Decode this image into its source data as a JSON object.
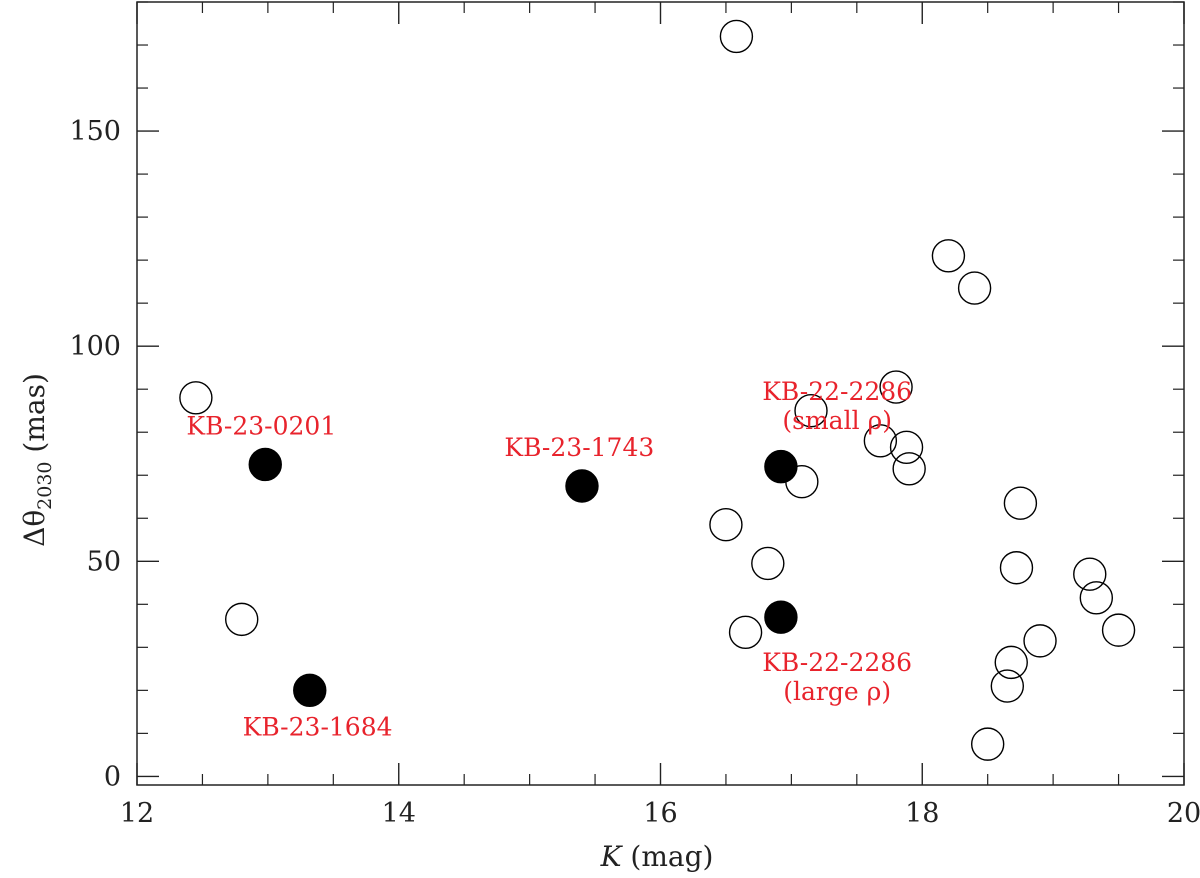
{
  "chart_data": {
    "type": "scatter",
    "xlabel_italic": "K",
    "xlabel_rest": " (mag)",
    "ylabel_main": "Δθ",
    "ylabel_sub": "2030",
    "ylabel_rest": " (mas)",
    "xlim": [
      12,
      20
    ],
    "ylim": [
      -2,
      180
    ],
    "x_ticks": [
      12,
      14,
      16,
      18,
      20
    ],
    "y_ticks": [
      0,
      50,
      100,
      150
    ],
    "x_minor_step": 0.5,
    "y_minor_step": 10,
    "grid": false,
    "series": [
      {
        "style": "open-circle",
        "points": [
          {
            "x": 12.45,
            "y": 88
          },
          {
            "x": 12.8,
            "y": 36.5
          },
          {
            "x": 16.58,
            "y": 172
          },
          {
            "x": 16.5,
            "y": 58.5
          },
          {
            "x": 16.82,
            "y": 49.5
          },
          {
            "x": 16.65,
            "y": 33.5
          },
          {
            "x": 17.08,
            "y": 68.5
          },
          {
            "x": 17.15,
            "y": 85
          },
          {
            "x": 17.68,
            "y": 78
          },
          {
            "x": 17.8,
            "y": 90.5
          },
          {
            "x": 17.88,
            "y": 76.5
          },
          {
            "x": 17.9,
            "y": 71.5
          },
          {
            "x": 18.2,
            "y": 121
          },
          {
            "x": 18.4,
            "y": 113.5
          },
          {
            "x": 18.5,
            "y": 7.5
          },
          {
            "x": 18.65,
            "y": 21
          },
          {
            "x": 18.68,
            "y": 26.5
          },
          {
            "x": 18.72,
            "y": 48.5
          },
          {
            "x": 18.75,
            "y": 63.5
          },
          {
            "x": 18.9,
            "y": 31.5
          },
          {
            "x": 19.28,
            "y": 47
          },
          {
            "x": 19.33,
            "y": 41.5
          },
          {
            "x": 19.5,
            "y": 34
          }
        ]
      },
      {
        "style": "filled-circle",
        "points": [
          {
            "x": 12.98,
            "y": 72.5
          },
          {
            "x": 13.32,
            "y": 20
          },
          {
            "x": 15.4,
            "y": 67.5
          },
          {
            "x": 16.92,
            "y": 72
          },
          {
            "x": 16.92,
            "y": 37
          }
        ]
      }
    ],
    "annotations": [
      {
        "lines": [
          "KB-23-0201"
        ],
        "x": 12.95,
        "y": 79.5
      },
      {
        "lines": [
          "KB-23-1684"
        ],
        "x": 13.38,
        "y": 9.5
      },
      {
        "lines": [
          "KB-23-1743"
        ],
        "x": 15.38,
        "y": 74.5
      },
      {
        "lines": [
          "KB-22-2286",
          "(small ρ)"
        ],
        "x": 17.35,
        "y": 87.5
      },
      {
        "lines": [
          "KB-22-2286",
          "(large ρ)"
        ],
        "x": 17.35,
        "y": 24.5
      }
    ],
    "colors": {
      "axis": "#222222",
      "marker": "#000000",
      "annotation": "#e8232c"
    }
  }
}
